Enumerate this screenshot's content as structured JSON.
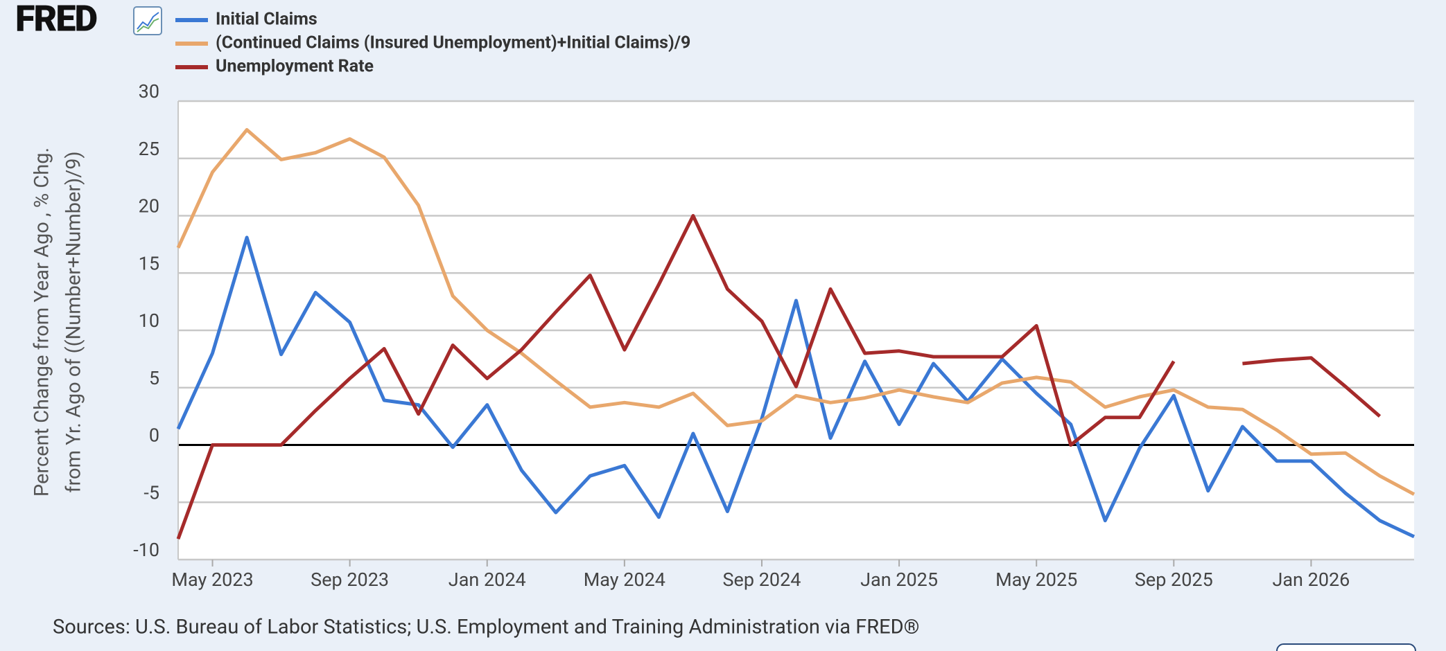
{
  "logo": "FRED",
  "chart_data": {
    "type": "line",
    "ylabel": [
      "Percent Change from Year Ago , % Chg.",
      "from Yr. Ago of ((Number+Number)/9)"
    ],
    "source": "Sources: U.S. Bureau of Labor Statistics; U.S. Employment and Training Administration via FRED®",
    "x": [
      "2023-04",
      "2023-05",
      "2023-06",
      "2023-07",
      "2023-08",
      "2023-09",
      "2023-10",
      "2023-11",
      "2023-12",
      "2024-01",
      "2024-02",
      "2024-03",
      "2024-04",
      "2024-05",
      "2024-06",
      "2024-07",
      "2024-08",
      "2024-09",
      "2024-10",
      "2024-11",
      "2024-12",
      "2025-01",
      "2025-02",
      "2025-03",
      "2025-04",
      "2025-05",
      "2025-06",
      "2025-07",
      "2025-08",
      "2025-09",
      "2025-10",
      "2025-11",
      "2025-12",
      "2026-01",
      "2026-02",
      "2026-03",
      "2026-04"
    ],
    "xticks": [
      {
        "value": "2023-05",
        "label": "May 2023"
      },
      {
        "value": "2023-09",
        "label": "Sep 2023"
      },
      {
        "value": "2024-01",
        "label": "Jan 2024"
      },
      {
        "value": "2024-05",
        "label": "May 2024"
      },
      {
        "value": "2024-09",
        "label": "Sep 2024"
      },
      {
        "value": "2025-01",
        "label": "Jan 2025"
      },
      {
        "value": "2025-05",
        "label": "May 2025"
      },
      {
        "value": "2025-09",
        "label": "Sep 2025"
      },
      {
        "value": "2026-01",
        "label": "Jan 2026"
      }
    ],
    "ylim": [
      -10,
      30
    ],
    "yticks": [
      -10,
      -5,
      0,
      5,
      10,
      15,
      20,
      25,
      30
    ],
    "grid": true,
    "series": [
      {
        "name": "Initial Claims",
        "color": "#3a78d4",
        "values": [
          1.4,
          8.0,
          18.1,
          7.9,
          13.3,
          10.7,
          3.9,
          3.5,
          -0.2,
          3.5,
          -2.2,
          -5.9,
          -2.7,
          -1.8,
          -6.3,
          1.0,
          -5.8,
          2.3,
          12.6,
          0.6,
          7.3,
          1.8,
          7.1,
          3.8,
          7.5,
          4.5,
          1.8,
          -6.6,
          -0.3,
          4.3,
          -4.0,
          1.6,
          -1.4,
          -1.4,
          -4.2,
          -6.6,
          -8.0
        ]
      },
      {
        "name": "(Continued Claims (Insured Unemployment)+Initial Claims)/9",
        "color": "#e8a76c",
        "values": [
          17.2,
          23.8,
          27.5,
          24.9,
          25.5,
          26.7,
          25.1,
          20.9,
          13.0,
          10.0,
          8.0,
          5.6,
          3.3,
          3.7,
          3.3,
          4.5,
          1.7,
          2.1,
          4.3,
          3.7,
          4.1,
          4.8,
          4.2,
          3.7,
          5.4,
          5.9,
          5.5,
          3.3,
          4.2,
          4.8,
          3.3,
          3.1,
          1.3,
          -0.8,
          -0.7,
          -2.7,
          -4.3
        ]
      },
      {
        "name": "Unemployment Rate",
        "color": "#a52a2a",
        "values": [
          -8.2,
          0,
          0,
          0,
          3.0,
          5.8,
          8.4,
          2.7,
          8.7,
          5.8,
          8.3,
          11.6,
          14.8,
          8.3,
          14.0,
          20.0,
          13.6,
          10.8,
          5.1,
          13.6,
          8.0,
          8.2,
          7.7,
          7.7,
          7.7,
          10.4,
          0,
          2.4,
          2.4,
          7.3,
          null,
          7.1,
          7.4,
          7.6,
          5.1,
          2.5,
          null
        ]
      }
    ]
  }
}
